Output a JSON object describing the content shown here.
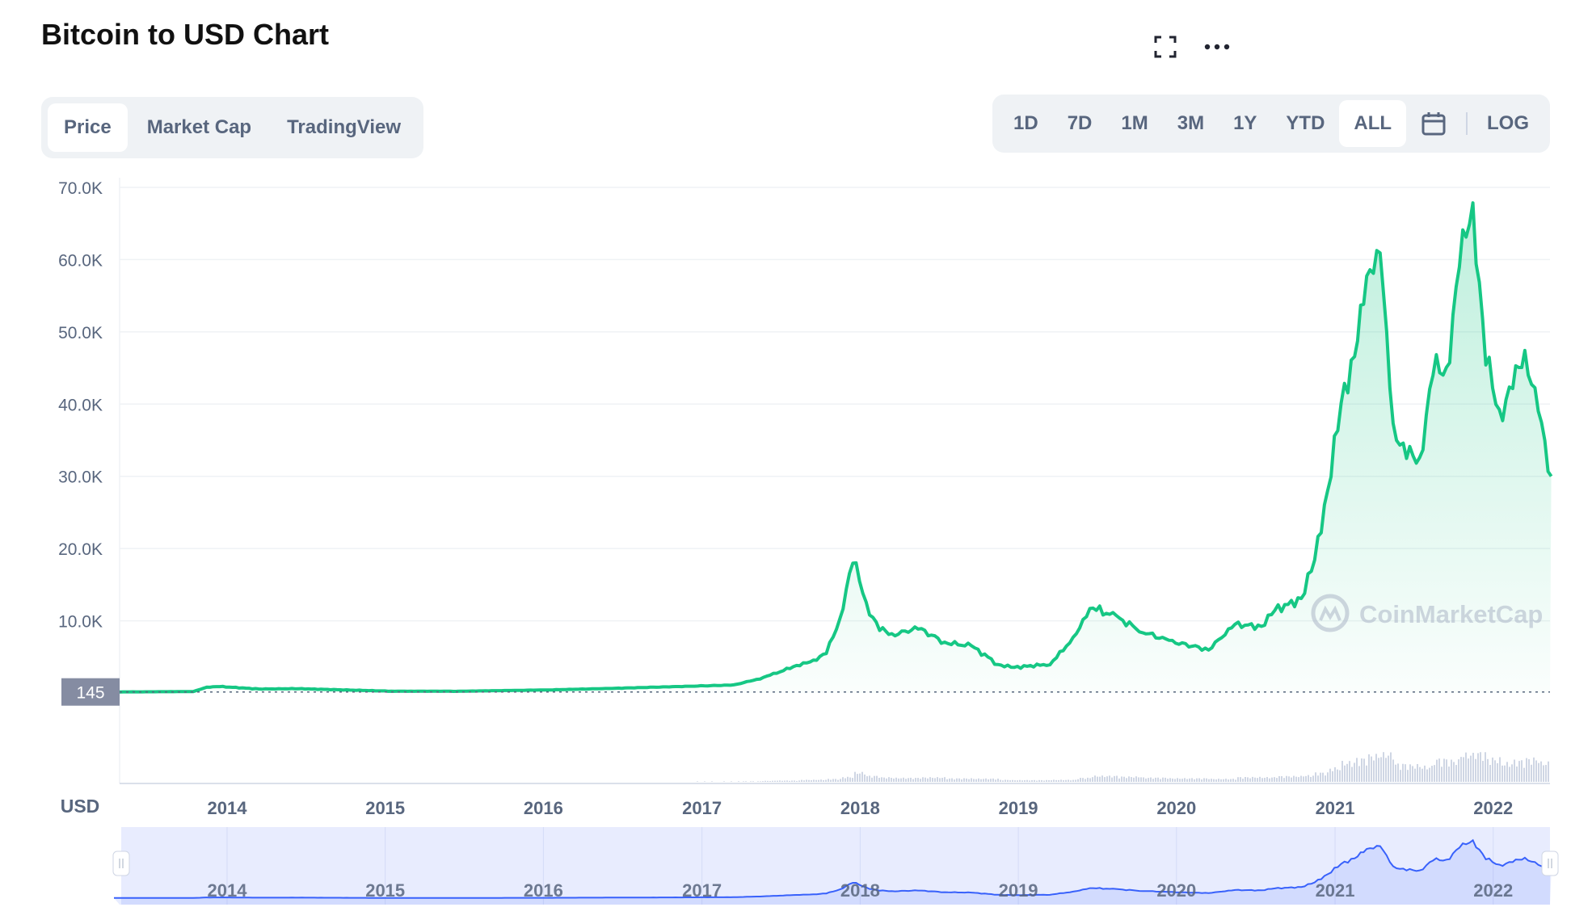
{
  "header": {
    "title": "Bitcoin to USD Chart"
  },
  "icons": {
    "fullscreen": "fullscreen-icon",
    "more": "more-dots-icon",
    "calendar": "calendar-icon"
  },
  "tabs": [
    {
      "label": "Price",
      "active": true
    },
    {
      "label": "Market Cap",
      "active": false
    },
    {
      "label": "TradingView",
      "active": false
    }
  ],
  "ranges": [
    {
      "label": "1D",
      "active": false
    },
    {
      "label": "7D",
      "active": false
    },
    {
      "label": "1M",
      "active": false
    },
    {
      "label": "3M",
      "active": false
    },
    {
      "label": "1Y",
      "active": false
    },
    {
      "label": "YTD",
      "active": false
    },
    {
      "label": "ALL",
      "active": true
    }
  ],
  "log_label": "LOG",
  "watermark": "CoinMarketCap",
  "colors": {
    "line": "#16c784",
    "navigator_line": "#3861fb",
    "navigator_bg": "#e8ecfe",
    "price_tag": "#858ca2"
  },
  "chart_data": {
    "type": "area",
    "currency_label": "USD",
    "ylim": [
      0,
      70000
    ],
    "y_ticks": [
      {
        "value": 10000,
        "label": "10.0K"
      },
      {
        "value": 20000,
        "label": "20.0K"
      },
      {
        "value": 30000,
        "label": "30.0K"
      },
      {
        "value": 40000,
        "label": "40.0K"
      },
      {
        "value": 50000,
        "label": "50.0K"
      },
      {
        "value": 60000,
        "label": "60.0K"
      },
      {
        "value": 70000,
        "label": "70.0K"
      }
    ],
    "start_price_label": "145",
    "start_price": 145,
    "x_ticks": [
      "2014",
      "2015",
      "2016",
      "2017",
      "2018",
      "2019",
      "2020",
      "2021",
      "2022"
    ],
    "grid": true,
    "series": [
      {
        "x": [
          "2013-04",
          "2013-10",
          "2013-11",
          "2013-12",
          "2014-03",
          "2014-06",
          "2015-01",
          "2015-06",
          "2016-01",
          "2016-06",
          "2016-12",
          "2017-03",
          "2017-05",
          "2017-06",
          "2017-08",
          "2017-09",
          "2017-10",
          "2017-11",
          "2017-12",
          "2018-01",
          "2018-02",
          "2018-03",
          "2018-05",
          "2018-07",
          "2018-09",
          "2018-11",
          "2018-12",
          "2019-03",
          "2019-05",
          "2019-06",
          "2019-08",
          "2019-10",
          "2019-12",
          "2020-03",
          "2020-05",
          "2020-07",
          "2020-08",
          "2020-10",
          "2020-11",
          "2020-12",
          "2021-01",
          "2021-02",
          "2021-03",
          "2021-04",
          "2021-05",
          "2021-06",
          "2021-07",
          "2021-08",
          "2021-09",
          "2021-10",
          "2021-11",
          "2021-12",
          "2022-01",
          "2022-02",
          "2022-03",
          "2022-04",
          "2022-05"
        ],
        "y": [
          145,
          200,
          800,
          900,
          550,
          600,
          250,
          240,
          430,
          650,
          960,
          1100,
          2000,
          2600,
          4000,
          4300,
          5800,
          9700,
          19000,
          12000,
          9000,
          8000,
          9000,
          7000,
          6500,
          4000,
          3500,
          4000,
          8000,
          12000,
          10500,
          8500,
          7200,
          6000,
          9500,
          9200,
          11500,
          13000,
          18500,
          28000,
          40000,
          47000,
          57000,
          62000,
          36000,
          34000,
          31000,
          46000,
          43000,
          61000,
          66000,
          47000,
          38000,
          43000,
          47000,
          39000,
          30000
        ]
      }
    ]
  }
}
